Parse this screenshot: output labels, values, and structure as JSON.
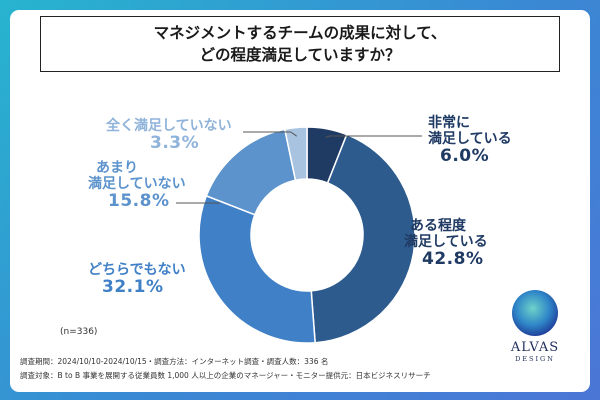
{
  "title_lines": [
    "マネジメントするチームの成果に対して、",
    "どの程度満足していますか？"
  ],
  "n_count": "(n=336)",
  "footer": {
    "line1": "調査期間：2024/10/10-2024/10/15・調査方法：インターネット調査・調査人数：336 名",
    "line2": "調査対象：B to B 事業を展開する従業員数 1,000 人以上の企業のマネージャー・モニター提供元：日本ビジネスリサーチ"
  },
  "brand": {
    "name": "ALVAS",
    "sub": "DESIGN"
  },
  "colors": {
    "very": "#1f3a63",
    "somewhat": "#2d5b8e",
    "neither": "#4080c6",
    "not_much": "#5c93cc",
    "not_at_all": "#a7c3e0"
  },
  "chart_data": {
    "type": "pie",
    "donut": true,
    "categories": [
      "非常に満足している",
      "ある程度満足している",
      "どちらでもない",
      "あまり満足していない",
      "全く満足していない"
    ],
    "category_lines": [
      [
        "非常に",
        "満足している"
      ],
      [
        "ある程度",
        "満足している"
      ],
      [
        "どちらでもない"
      ],
      [
        "あまり",
        "満足していない"
      ],
      [
        "全く満足していない"
      ]
    ],
    "values": [
      6.0,
      42.8,
      32.1,
      15.8,
      3.3
    ],
    "value_labels": [
      "6.0%",
      "42.8%",
      "32.1%",
      "15.8%",
      "3.3%"
    ]
  }
}
